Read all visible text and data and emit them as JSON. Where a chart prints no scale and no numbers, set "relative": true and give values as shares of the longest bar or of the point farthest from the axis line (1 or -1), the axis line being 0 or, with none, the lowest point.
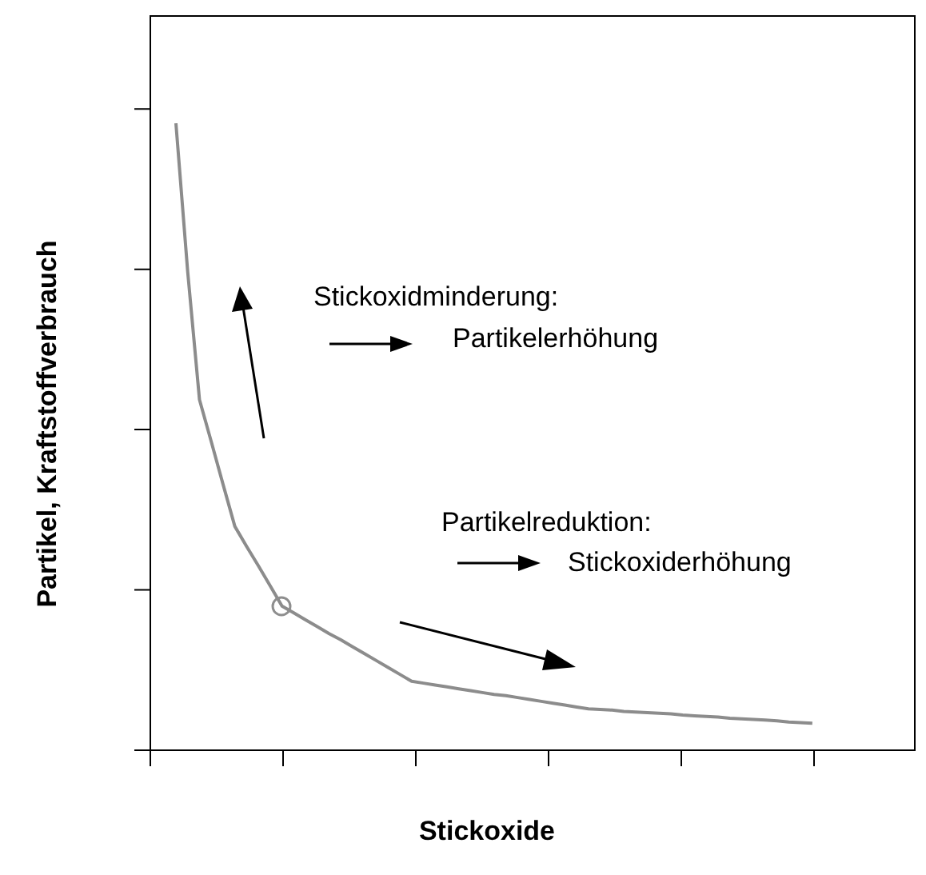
{
  "chart_data": {
    "type": "line",
    "relative": true,
    "xlabel": "Stickoxide",
    "ylabel": "Partikel, Kraftstoffverbrauch",
    "categories": [
      null,
      null,
      null,
      null,
      null,
      null,
      null,
      null,
      null,
      null,
      null,
      null,
      null,
      null,
      null,
      null,
      null,
      null,
      null,
      null,
      null,
      null,
      null,
      null,
      null,
      null,
      null,
      null,
      null,
      null,
      null,
      null,
      null,
      null,
      null,
      null,
      null,
      null,
      null,
      null,
      null,
      null,
      null,
      null,
      null,
      null,
      null,
      null,
      null,
      null,
      null,
      null,
      null,
      null,
      null
    ],
    "series": [
      {
        "color": "#8c8c8c",
        "values": [
          1,
          0.763,
          0.559,
          0.492,
          0.424,
          0.357,
          0.325,
          0.294,
          0.262,
          0.23,
          0.219,
          0.208,
          0.197,
          0.186,
          0.176,
          0.165,
          0.154,
          0.143,
          0.132,
          0.121,
          0.11,
          0.107,
          0.104,
          0.101,
          0.098,
          0.095,
          0.092,
          0.089,
          0.087,
          0.084,
          0.081,
          0.078,
          0.075,
          0.072,
          0.069,
          0.066,
          0.065,
          0.064,
          0.062,
          0.061,
          0.06,
          0.059,
          0.058,
          0.056,
          0.055,
          0.054,
          0.053,
          0.051,
          0.05,
          0.049,
          0.048,
          0.047,
          0.045,
          0.044,
          0.043
        ]
      }
    ],
    "annotations": [
      "Stickoxidminderung:",
      "Partikelerhöhung",
      "Partikelreduktion:",
      "Stickoxiderhöhung"
    ],
    "grid": false,
    "legend": false
  }
}
